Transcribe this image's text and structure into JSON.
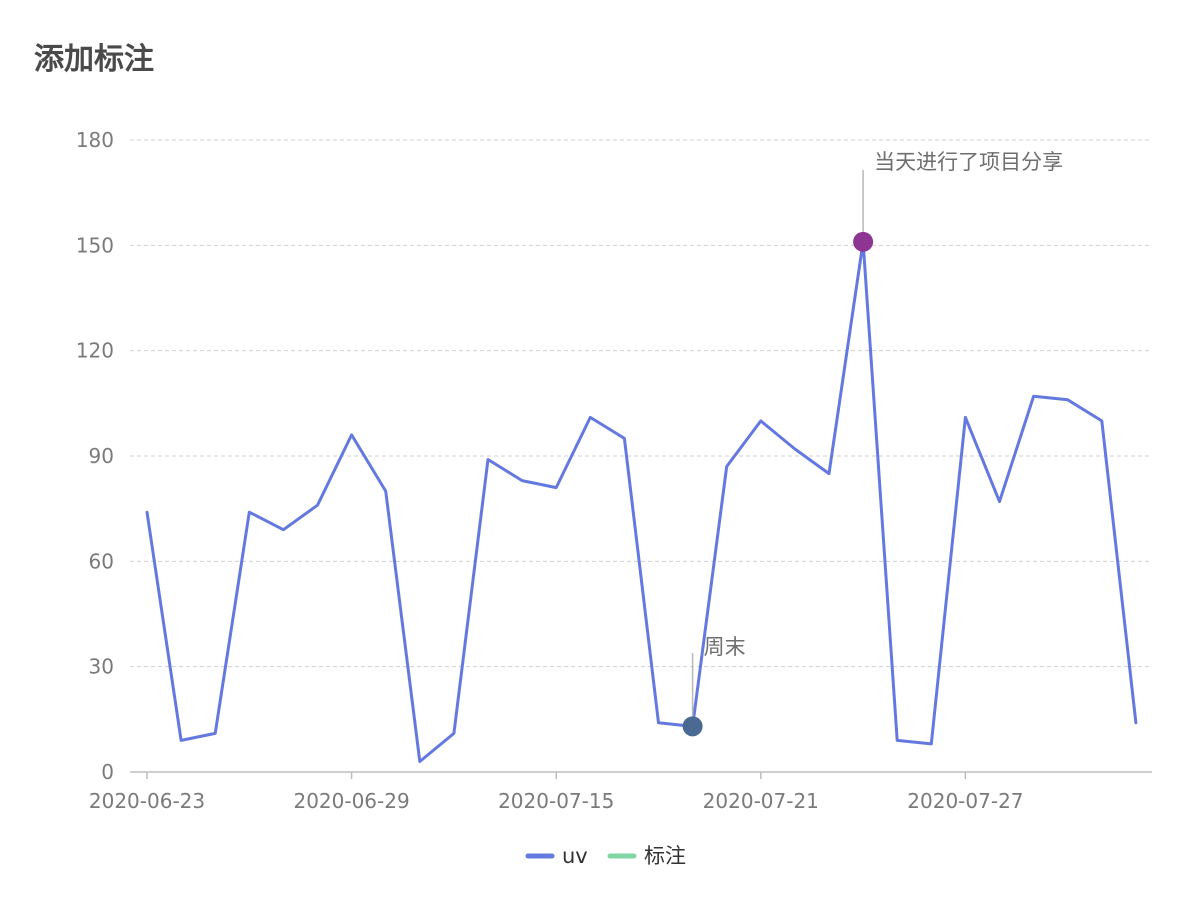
{
  "page": {
    "title": "添加标注"
  },
  "chart_data": {
    "type": "line",
    "title": "添加标注",
    "xlabel": "",
    "ylabel": "",
    "ylim": [
      0,
      180
    ],
    "yticks": [
      0,
      30,
      60,
      90,
      120,
      150,
      180
    ],
    "x_tick_labels": [
      {
        "index": 0,
        "label": "2020-06-23"
      },
      {
        "index": 6,
        "label": "2020-06-29"
      },
      {
        "index": 12,
        "label": "2020-07-15"
      },
      {
        "index": 18,
        "label": "2020-07-21"
      },
      {
        "index": 24,
        "label": "2020-07-27"
      }
    ],
    "grid": true,
    "legend": {
      "placement": "bottom-center",
      "items": [
        {
          "name": "uv",
          "color": "#6479e0"
        },
        {
          "name": "标注",
          "color": "#82d6a4"
        }
      ]
    },
    "series": [
      {
        "name": "uv",
        "color": "#6479e0",
        "values": [
          74,
          9,
          11,
          74,
          69,
          76,
          96,
          80,
          3,
          11,
          89,
          83,
          81,
          101,
          95,
          14,
          13,
          87,
          100,
          92,
          85,
          151,
          9,
          8,
          101,
          77,
          107,
          106,
          100,
          14
        ]
      }
    ],
    "annotations": [
      {
        "index": 16,
        "value": 13,
        "text": "周末",
        "color": "#4a6a94"
      },
      {
        "index": 21,
        "value": 151,
        "text": "当天进行了项目分享",
        "color": "#8e3593"
      }
    ]
  }
}
